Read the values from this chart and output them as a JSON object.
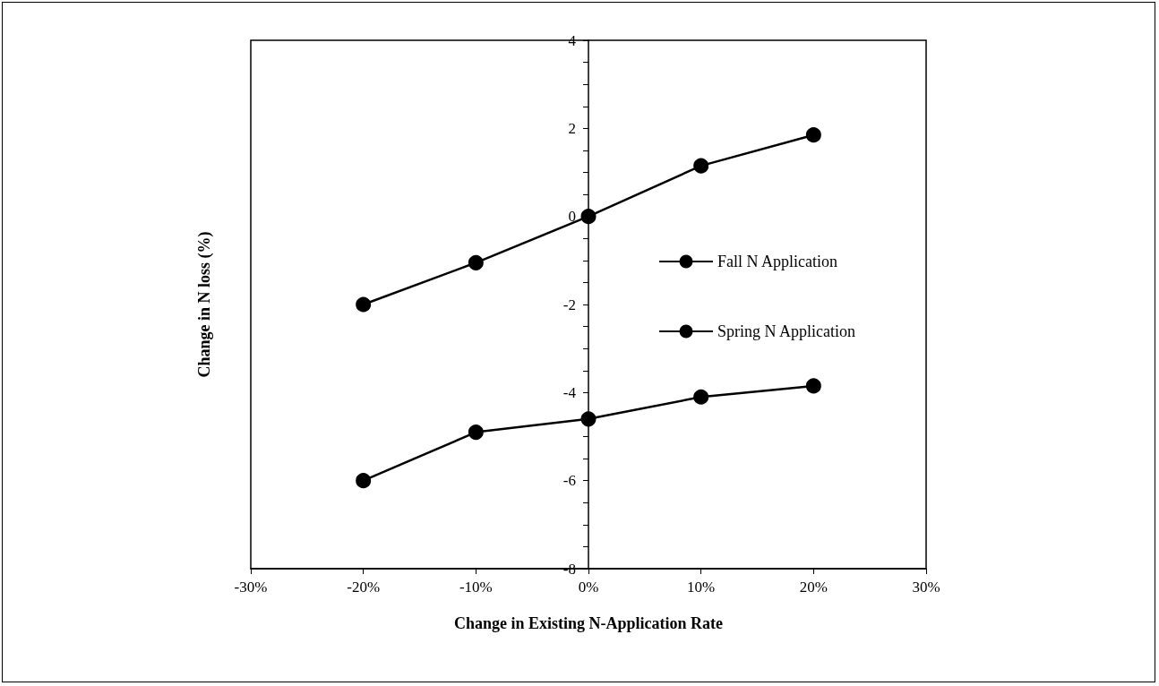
{
  "chart_data": {
    "type": "line",
    "xlabel": "Change in Existing N-Application Rate",
    "ylabel": "Change in N loss (%)",
    "x": [
      -20,
      -10,
      0,
      10,
      20
    ],
    "series": [
      {
        "name": "Fall N Application",
        "color": "#000000",
        "values": [
          -2.0,
          -1.05,
          0.0,
          1.15,
          1.85
        ]
      },
      {
        "name": "Spring N Application",
        "color": "#000000",
        "values": [
          -6.0,
          -4.9,
          -4.6,
          -4.1,
          -3.85
        ]
      }
    ],
    "xlim": [
      -30,
      30
    ],
    "xticks": [
      {
        "value": -30,
        "label": "-30%"
      },
      {
        "value": -20,
        "label": "-20%"
      },
      {
        "value": -10,
        "label": "-10%"
      },
      {
        "value": 0,
        "label": "0%"
      },
      {
        "value": 10,
        "label": "10%"
      },
      {
        "value": 20,
        "label": "20%"
      },
      {
        "value": 30,
        "label": "30%"
      }
    ],
    "ylim": [
      -8,
      4
    ],
    "yticks": [
      -8,
      {
        "value": -7.5,
        "label": null
      },
      {
        "value": -7,
        "label": null
      },
      {
        "value": -6.5,
        "label": null
      },
      -6,
      {
        "value": -5.5,
        "label": null
      },
      {
        "value": -5,
        "label": null
      },
      {
        "value": -4.5,
        "label": null
      },
      -4,
      {
        "value": -3.5,
        "label": null
      },
      {
        "value": -3,
        "label": null
      },
      {
        "value": -2.5,
        "label": null
      },
      -2,
      {
        "value": -1.5,
        "label": null
      },
      {
        "value": -1,
        "label": null
      },
      {
        "value": -0.5,
        "label": null
      },
      0,
      {
        "value": 0.5,
        "label": null
      },
      {
        "value": 1,
        "label": null
      },
      {
        "value": 1.5,
        "label": null
      },
      2,
      {
        "value": 2.5,
        "label": null
      },
      {
        "value": 3,
        "label": null
      },
      {
        "value": 3.5,
        "label": null
      },
      4
    ],
    "grid": false,
    "legend": "right",
    "marker": "circle",
    "line_style": "solid"
  }
}
